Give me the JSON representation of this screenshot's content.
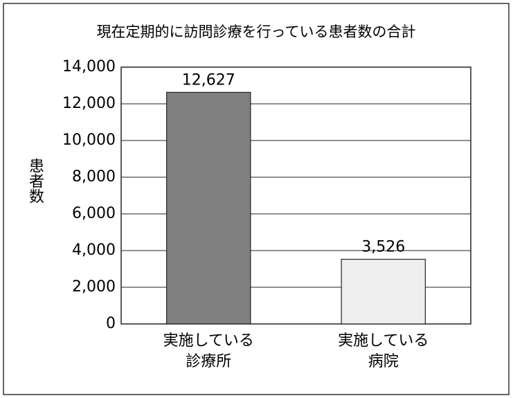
{
  "chart_data": {
    "type": "bar",
    "title": "現在定期的に訪問診療を行っている患者数の合計",
    "y_label": "患者数",
    "categories": [
      [
        "実施している",
        "診療所"
      ],
      [
        "実施している",
        "病院"
      ]
    ],
    "values": [
      12627,
      3526
    ],
    "value_labels": [
      "12,627",
      "3,526"
    ],
    "colors": [
      "#808080",
      "#eeeeee"
    ],
    "ylim": [
      0,
      14000
    ],
    "yticks": [
      0,
      {
        "value": 2000,
        "label": "2,000"
      },
      {
        "value": 4000,
        "label": "4,000"
      },
      {
        "value": 6000,
        "label": "6,000"
      },
      {
        "value": 8000,
        "label": "8,000"
      },
      {
        "value": 10000,
        "label": "10,000"
      },
      {
        "value": 12000,
        "label": "12,000"
      },
      {
        "value": 14000,
        "label": "14,000"
      }
    ],
    "grid": true
  }
}
